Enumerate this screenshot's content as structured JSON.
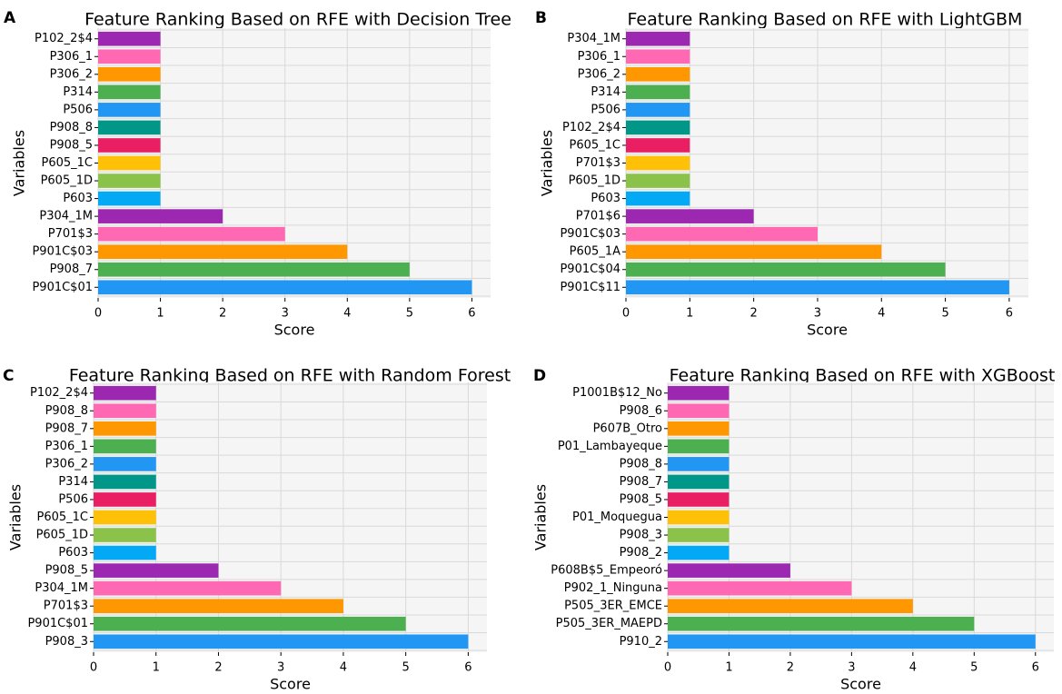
{
  "palette": [
    "#2196F3",
    "#4CAF50",
    "#FF9800",
    "#FF69B4",
    "#9C27B0",
    "#03A9F4",
    "#8BC34A",
    "#FFC107",
    "#E91E63",
    "#009688",
    "#2196F3",
    "#4CAF50",
    "#FF9800",
    "#FF69B4",
    "#9C27B0"
  ],
  "chart_data": [
    {
      "panel": "A",
      "type": "bar",
      "orientation": "horizontal",
      "title": "Feature Ranking Based on RFE with Decision Tree",
      "xlabel": "Score",
      "ylabel": "Variables",
      "xlim": [
        0,
        6.3
      ],
      "xticks": [
        0,
        1,
        2,
        3,
        4,
        5,
        6
      ],
      "grid": true,
      "categories": [
        "P901C$01",
        "P908_7",
        "P901C$03",
        "P701$3",
        "P304_1M",
        "P603",
        "P605_1D",
        "P605_1C",
        "P908_5",
        "P908_8",
        "P506",
        "P314",
        "P306_2",
        "P306_1",
        "P102_2$4"
      ],
      "values": [
        6,
        5,
        4,
        3,
        2,
        1,
        1,
        1,
        1,
        1,
        1,
        1,
        1,
        1,
        1
      ]
    },
    {
      "panel": "B",
      "type": "bar",
      "orientation": "horizontal",
      "title": "Feature Ranking Based on RFE with LightGBM",
      "xlabel": "Score",
      "ylabel": "Variables",
      "xlim": [
        0,
        6.3
      ],
      "xticks": [
        0,
        1,
        2,
        3,
        4,
        5,
        6
      ],
      "grid": true,
      "categories": [
        "P901C$11",
        "P901C$04",
        "P605_1A",
        "P901C$03",
        "P701$6",
        "P603",
        "P605_1D",
        "P701$3",
        "P605_1C",
        "P102_2$4",
        "P506",
        "P314",
        "P306_2",
        "P306_1",
        "P304_1M"
      ],
      "values": [
        6,
        5,
        4,
        3,
        2,
        1,
        1,
        1,
        1,
        1,
        1,
        1,
        1,
        1,
        1
      ]
    },
    {
      "panel": "C",
      "type": "bar",
      "orientation": "horizontal",
      "title": "Feature Ranking Based on RFE with Random Forest",
      "xlabel": "Score",
      "ylabel": "Variables",
      "xlim": [
        0,
        6.3
      ],
      "xticks": [
        0,
        1,
        2,
        3,
        4,
        5,
        6
      ],
      "grid": true,
      "categories": [
        "P908_3",
        "P901C$01",
        "P701$3",
        "P304_1M",
        "P908_5",
        "P603",
        "P605_1D",
        "P605_1C",
        "P506",
        "P314",
        "P306_2",
        "P306_1",
        "P908_7",
        "P908_8",
        "P102_2$4"
      ],
      "values": [
        6,
        5,
        4,
        3,
        2,
        1,
        1,
        1,
        1,
        1,
        1,
        1,
        1,
        1,
        1
      ]
    },
    {
      "panel": "D",
      "type": "bar",
      "orientation": "horizontal",
      "title": "Feature Ranking Based on RFE with XGBoost",
      "xlabel": "Score",
      "ylabel": "Variables",
      "xlim": [
        0,
        6.3
      ],
      "xticks": [
        0,
        1,
        2,
        3,
        4,
        5,
        6
      ],
      "grid": true,
      "categories": [
        "P910_2",
        "P505_3ER_MAEPD",
        "P505_3ER_EMCE",
        "P902_1_Ninguna",
        "P608B$5_Empeoró",
        "P908_2",
        "P908_3",
        "P01_Moquegua",
        "P908_5",
        "P908_7",
        "P908_8",
        "P01_Lambayeque",
        "P607B_Otro",
        "P908_6",
        "P1001B$12_No"
      ],
      "values": [
        6,
        5,
        4,
        3,
        2,
        1,
        1,
        1,
        1,
        1,
        1,
        1,
        1,
        1,
        1
      ]
    }
  ]
}
